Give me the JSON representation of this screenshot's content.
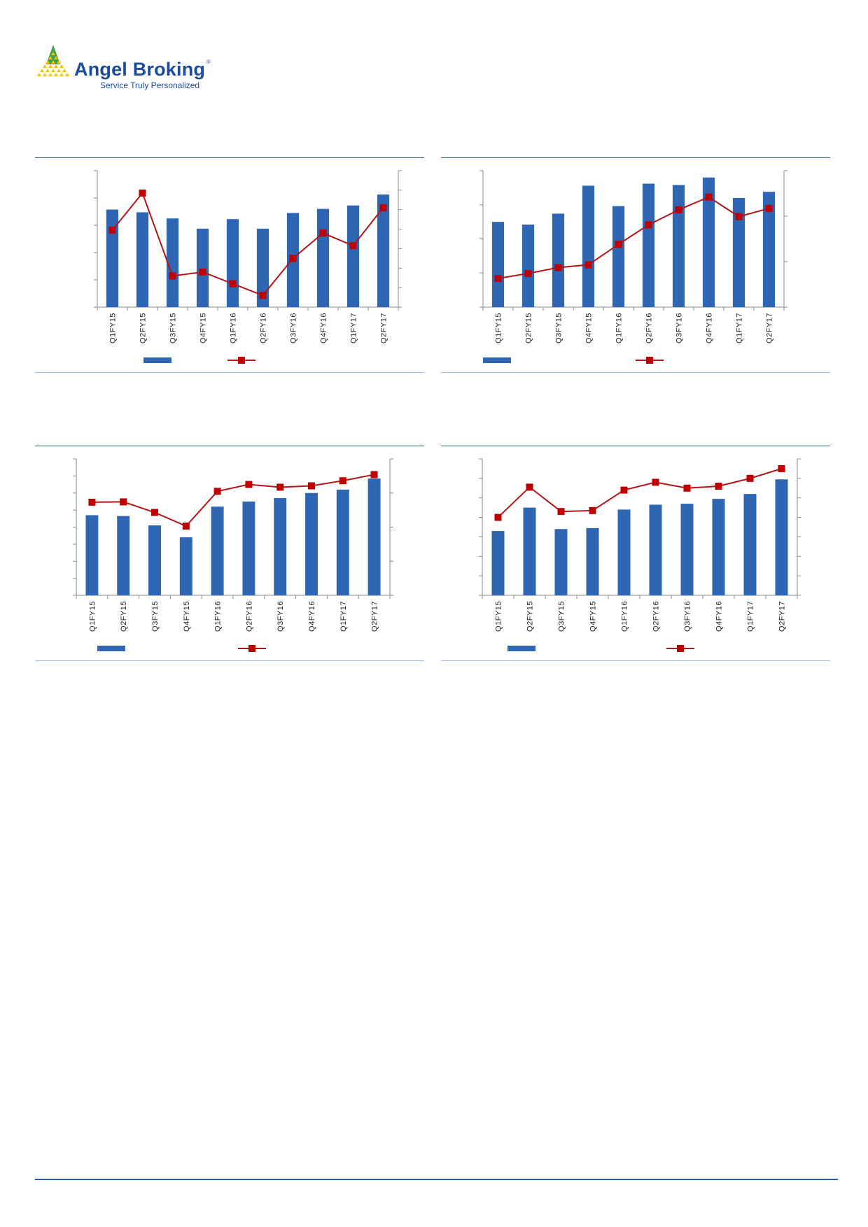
{
  "header": {
    "logo_name": "Angel Broking",
    "logo_registered": "®",
    "logo_tagline": "Service Truly Personalized",
    "brand_color": "#1b4c9b",
    "logo_icon": "yellow-green-pyramid-icon"
  },
  "colors": {
    "bar": "#2f66b3",
    "line": "#b41416",
    "marker": "#c00000",
    "rule": "#2a5da8"
  },
  "chart_data": [
    {
      "type": "bar+line",
      "categories": [
        "Q1FY15",
        "Q2FY15",
        "Q3FY15",
        "Q4FY15",
        "Q1FY16",
        "Q2FY16",
        "Q3FY16",
        "Q4FY16",
        "Q1FY17",
        "Q2FY17"
      ],
      "series": [
        {
          "kind": "bar",
          "values": [
            71.5,
            69.5,
            65,
            57.5,
            64.5,
            57.5,
            69,
            72,
            74.5,
            82.5
          ]
        },
        {
          "kind": "line",
          "values": [
            39.5,
            58.5,
            16,
            18,
            12,
            6,
            25,
            38,
            31.5,
            51
          ]
        }
      ],
      "ylim": [
        0,
        100
      ],
      "y2lim": [
        0,
        70
      ]
    },
    {
      "type": "bar+line",
      "categories": [
        "Q1FY15",
        "Q2FY15",
        "Q3FY15",
        "Q4FY15",
        "Q1FY16",
        "Q2FY16",
        "Q3FY16",
        "Q4FY16",
        "Q1FY17",
        "Q2FY17"
      ],
      "series": [
        {
          "kind": "bar",
          "values": [
            62.5,
            60.5,
            68.5,
            89,
            74,
            90.5,
            89.5,
            95,
            80,
            84.5
          ]
        },
        {
          "kind": "line",
          "values": [
            6.3,
            7.4,
            8.7,
            9.3,
            13.8,
            18.1,
            21.4,
            24.2,
            19.9,
            21.7
          ]
        }
      ],
      "ylim": [
        0,
        100
      ],
      "y2lim": [
        0,
        30
      ]
    },
    {
      "type": "bar+line",
      "categories": [
        "Q1FY15",
        "Q2FY15",
        "Q3FY15",
        "Q4FY15",
        "Q1FY16",
        "Q2FY16",
        "Q3FY16",
        "Q4FY16",
        "Q1FY17",
        "Q2FY17"
      ],
      "series": [
        {
          "kind": "bar",
          "values": [
            47,
            46.5,
            41,
            34,
            52,
            55,
            57,
            60,
            62,
            68.5
          ]
        },
        {
          "kind": "line",
          "values": [
            27.3,
            27.4,
            24.3,
            20.3,
            30.5,
            32.5,
            31.7,
            32.1,
            33.6,
            35.4
          ]
        }
      ],
      "ylim": [
        0,
        80
      ],
      "y2lim": [
        0,
        40
      ]
    },
    {
      "type": "bar+line",
      "categories": [
        "Q1FY15",
        "Q2FY15",
        "Q3FY15",
        "Q4FY15",
        "Q1FY16",
        "Q2FY16",
        "Q3FY16",
        "Q4FY16",
        "Q1FY17",
        "Q2FY17"
      ],
      "series": [
        {
          "kind": "bar",
          "values": [
            33,
            45,
            34,
            34.5,
            44,
            46.5,
            47,
            49.5,
            52,
            59.5
          ]
        },
        {
          "kind": "line",
          "values": [
            40,
            55.5,
            43,
            43.5,
            54,
            58,
            55,
            56,
            60,
            65
          ]
        }
      ],
      "ylim": [
        0,
        70
      ],
      "y2lim": [
        0,
        70
      ]
    }
  ]
}
